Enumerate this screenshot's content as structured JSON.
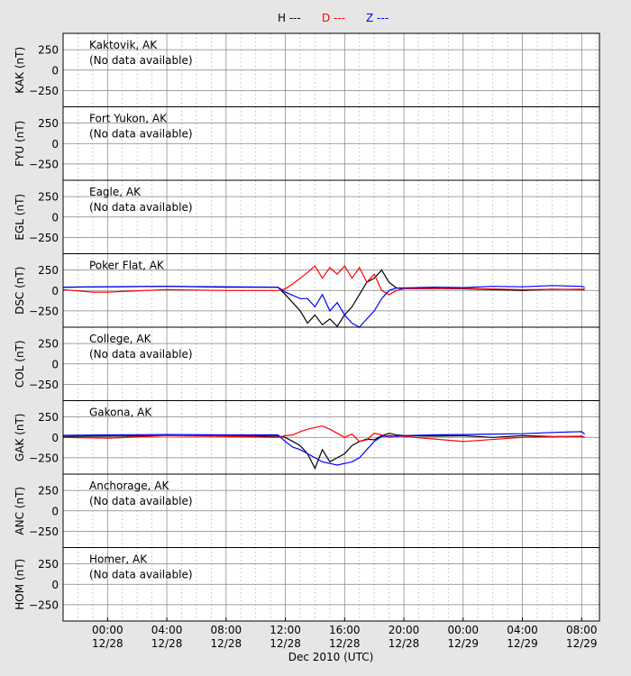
{
  "legend": [
    {
      "label": "H ---",
      "color": "#000000"
    },
    {
      "label": "D ---",
      "color": "#ff0000"
    },
    {
      "label": "Z ---",
      "color": "#0000ff"
    }
  ],
  "xlabel": "Dec 2010 (UTC)",
  "chart_data": {
    "type": "line",
    "xlabel": "Dec 2010 (UTC)",
    "x_unit": "hours since 2010-12-28 00:00 UTC",
    "xlim": [
      -3.0,
      33.2
    ],
    "x_ticks": [
      {
        "x": 0,
        "time": "00:00",
        "date": "12/28"
      },
      {
        "x": 4,
        "time": "04:00",
        "date": "12/28"
      },
      {
        "x": 8,
        "time": "08:00",
        "date": "12/28"
      },
      {
        "x": 12,
        "time": "12:00",
        "date": "12/28"
      },
      {
        "x": 16,
        "time": "16:00",
        "date": "12/28"
      },
      {
        "x": 20,
        "time": "20:00",
        "date": "12/28"
      },
      {
        "x": 24,
        "time": "00:00",
        "date": "12/29"
      },
      {
        "x": 28,
        "time": "04:00",
        "date": "12/29"
      },
      {
        "x": 32,
        "time": "08:00",
        "date": "12/29"
      }
    ],
    "y_ticks": [
      250,
      0,
      -250
    ],
    "grid": true,
    "legend_position": "top-center",
    "panels": [
      {
        "station": "Kaktovik, AK",
        "ylabel": "KAK (nT)",
        "ylim": [
          -450,
          450
        ],
        "note": "(No data available)",
        "series": []
      },
      {
        "station": "Fort Yukon, AK",
        "ylabel": "FYU (nT)",
        "ylim": [
          -450,
          450
        ],
        "note": "(No data available)",
        "series": []
      },
      {
        "station": "Eagle, AK",
        "ylabel": "EGL (nT)",
        "ylim": [
          -450,
          450
        ],
        "note": "(No data available)",
        "series": []
      },
      {
        "station": "Poker Flat, AK",
        "ylabel": "DSC (nT)",
        "ylim": [
          -450,
          450
        ],
        "note": "",
        "series": [
          {
            "name": "H",
            "color": "#000000",
            "x": [
              -3,
              0,
              4,
              8,
              11.5,
              12,
              12.5,
              13,
              13.5,
              14,
              14.5,
              15,
              15.5,
              16,
              16.5,
              17,
              17.5,
              18,
              18.5,
              19,
              19.5,
              20,
              22,
              24,
              26,
              28,
              30,
              32,
              32.2
            ],
            "y": [
              40,
              45,
              50,
              40,
              40,
              -50,
              -150,
              -250,
              -400,
              -300,
              -420,
              -350,
              -440,
              -300,
              -200,
              -50,
              100,
              150,
              250,
              100,
              30,
              20,
              25,
              20,
              10,
              0,
              15,
              10,
              20
            ]
          },
          {
            "name": "D",
            "color": "#ff0000",
            "x": [
              -3,
              -1,
              0,
              4,
              8,
              11.5,
              12,
              12.5,
              13,
              13.5,
              14,
              14.5,
              15,
              15.5,
              16,
              16.5,
              17,
              17.5,
              18,
              18.5,
              19,
              19.5,
              20,
              24,
              28,
              32,
              32.2
            ],
            "y": [
              10,
              -20,
              -20,
              10,
              0,
              0,
              20,
              80,
              150,
              220,
              300,
              150,
              280,
              200,
              300,
              150,
              280,
              100,
              200,
              0,
              -50,
              0,
              20,
              25,
              10,
              15,
              0
            ],
            "dashes": true
          },
          {
            "name": "Z",
            "color": "#0000ff",
            "x": [
              -3,
              0,
              4,
              8,
              11.5,
              12,
              12.5,
              13,
              13.5,
              14,
              14.5,
              15,
              15.5,
              16,
              16.5,
              17,
              17.5,
              18,
              18.5,
              19,
              19.5,
              20,
              22,
              24,
              26,
              28,
              30,
              32,
              32.2
            ],
            "y": [
              40,
              45,
              50,
              45,
              40,
              -20,
              -60,
              -100,
              -100,
              -200,
              -50,
              -250,
              -150,
              -300,
              -400,
              -450,
              -350,
              -250,
              -100,
              0,
              30,
              30,
              40,
              35,
              50,
              45,
              60,
              50,
              40
            ]
          }
        ]
      },
      {
        "station": "College, AK",
        "ylabel": "COL (nT)",
        "ylim": [
          -450,
          450
        ],
        "note": "(No data available)",
        "series": []
      },
      {
        "station": "Gakona, AK",
        "ylabel": "GAK (nT)",
        "ylim": [
          -450,
          450
        ],
        "note": "",
        "series": [
          {
            "name": "H",
            "color": "#000000",
            "x": [
              -3,
              0,
              4,
              8,
              11.5,
              12,
              12.5,
              13,
              13.5,
              14,
              14.5,
              15,
              15.5,
              16,
              16.5,
              17,
              17.5,
              18,
              18.5,
              19,
              19.5,
              20,
              22,
              24,
              26,
              28,
              30,
              32,
              32.2
            ],
            "y": [
              10,
              15,
              20,
              15,
              15,
              0,
              -50,
              -100,
              -200,
              -380,
              -150,
              -300,
              -250,
              -200,
              -100,
              -50,
              -20,
              -30,
              20,
              50,
              30,
              20,
              15,
              20,
              0,
              20,
              10,
              10,
              0
            ],
            "dashes": false
          },
          {
            "name": "D",
            "color": "#ff0000",
            "x": [
              -3,
              0,
              4,
              8,
              11.5,
              12,
              12.5,
              13,
              13.5,
              14,
              14.5,
              15,
              15.5,
              16,
              16.5,
              17,
              17.5,
              18,
              18.5,
              19,
              19.5,
              20,
              24,
              28,
              32,
              32.2
            ],
            "y": [
              0,
              -10,
              20,
              10,
              0,
              20,
              30,
              70,
              100,
              120,
              140,
              100,
              50,
              0,
              40,
              -50,
              -30,
              50,
              30,
              0,
              20,
              10,
              -50,
              0,
              15,
              0
            ]
          },
          {
            "name": "Z",
            "color": "#0000ff",
            "x": [
              -3,
              0,
              4,
              8,
              11.5,
              12,
              12.5,
              13,
              13.5,
              14,
              14.5,
              15,
              15.5,
              16,
              16.5,
              17,
              17.5,
              18,
              18.5,
              19,
              19.5,
              20,
              22,
              24,
              26,
              28,
              30,
              32,
              32.2
            ],
            "y": [
              25,
              30,
              35,
              30,
              30,
              -50,
              -120,
              -150,
              -200,
              -250,
              -300,
              -320,
              -340,
              -320,
              -300,
              -250,
              -150,
              -50,
              10,
              20,
              10,
              20,
              30,
              35,
              40,
              45,
              60,
              70,
              40
            ]
          }
        ]
      },
      {
        "station": "Anchorage, AK",
        "ylabel": "ANC (nT)",
        "ylim": [
          -450,
          450
        ],
        "note": "(No data available)",
        "series": []
      },
      {
        "station": "Homer, AK",
        "ylabel": "HOM (nT)",
        "ylim": [
          -450,
          450
        ],
        "note": "(No data available)",
        "series": []
      }
    ]
  }
}
